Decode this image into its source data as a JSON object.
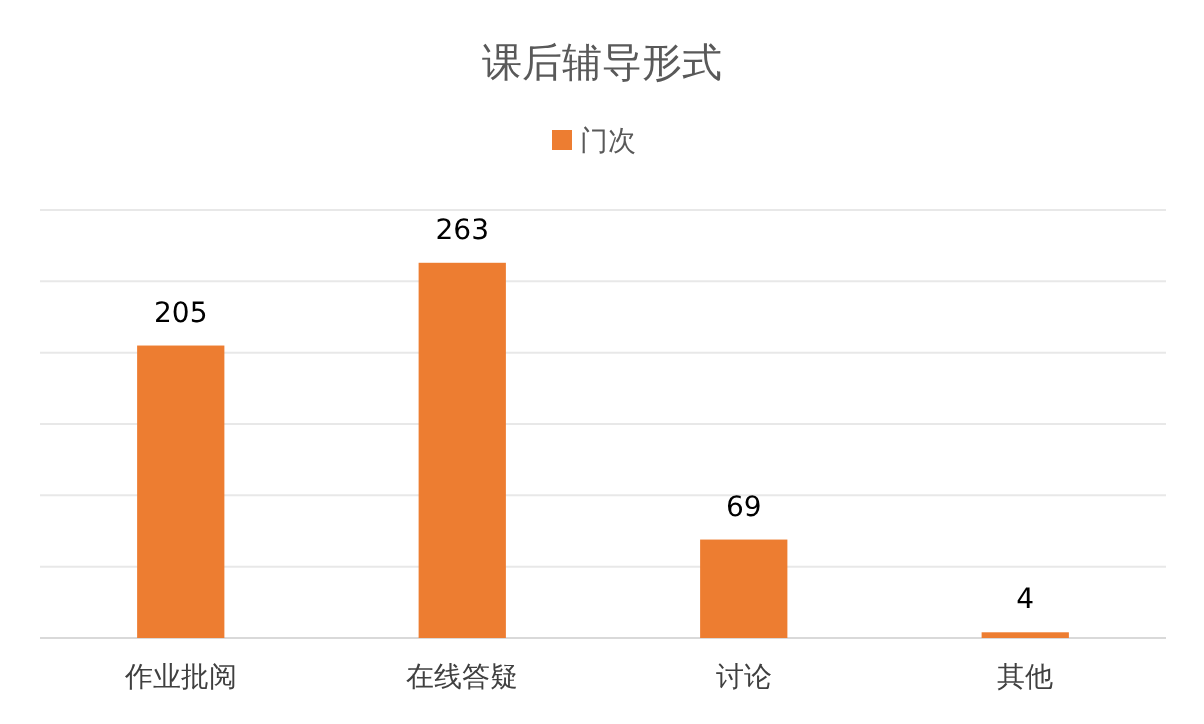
{
  "chart_data": {
    "type": "bar",
    "title": "课后辅导形式",
    "categories": [
      "作业批阅",
      "在线答疑",
      "讨论",
      "其他"
    ],
    "series": [
      {
        "name": "门次",
        "color": "#ed7d31",
        "values": [
          205,
          263,
          69,
          4
        ]
      }
    ],
    "ylim": [
      0,
      300
    ],
    "yticks": [
      {
        "value": 0,
        "label": null
      },
      {
        "value": 50,
        "label": null
      },
      {
        "value": 100,
        "label": null
      },
      {
        "value": 150,
        "label": null
      },
      {
        "value": 200,
        "label": null
      },
      {
        "value": 250,
        "label": null
      },
      {
        "value": 300,
        "label": null
      }
    ],
    "tick_labels": "x",
    "grid": "y",
    "legend": "top",
    "data_labels": true
  }
}
